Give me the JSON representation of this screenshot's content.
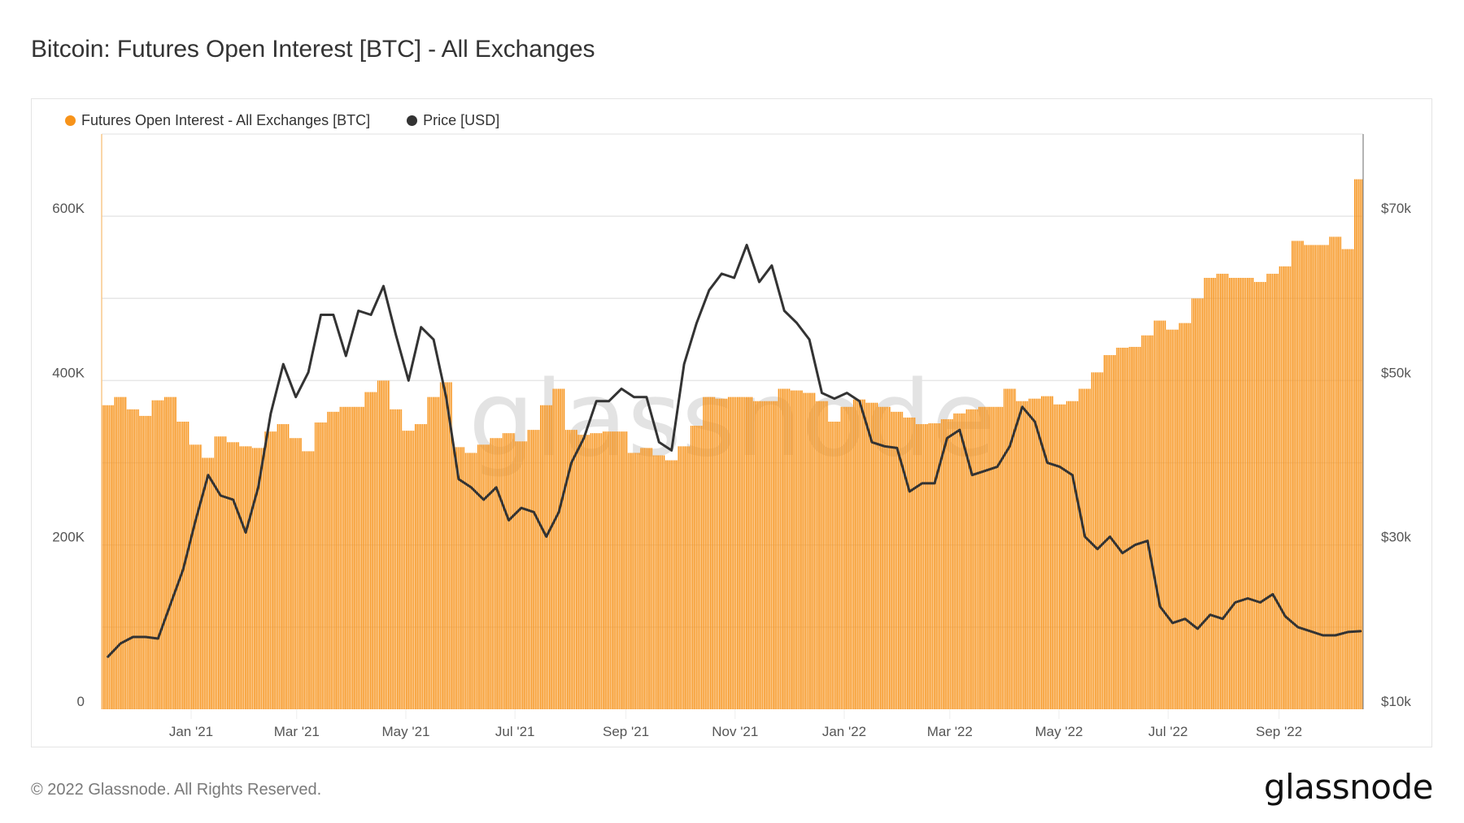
{
  "title": "Bitcoin: Futures Open Interest [BTC] - All Exchanges",
  "footer": {
    "copyright": "© 2022 Glassnode. All Rights Reserved.",
    "logo_text": "glassnode"
  },
  "watermark": "glassnode",
  "legend": [
    {
      "label": "Futures Open Interest - All Exchanges [BTC]",
      "color": "#F7931A",
      "icon": "circle-dot-icon"
    },
    {
      "label": "Price [USD]",
      "color": "#333333",
      "icon": "circle-dot-icon"
    }
  ],
  "chart_data": {
    "type": "bar+line",
    "title": "Bitcoin: Futures Open Interest [BTC] - All Exchanges",
    "x_start": "2020-11-12",
    "x_step_days": 7,
    "x_range": [
      "2020-11-12",
      "2022-10-18"
    ],
    "x_ticks": [
      {
        "date": "2021-01-01",
        "label": "Jan '21"
      },
      {
        "date": "2021-03-01",
        "label": "Mar '21"
      },
      {
        "date": "2021-05-01",
        "label": "May '21"
      },
      {
        "date": "2021-07-01",
        "label": "Jul '21"
      },
      {
        "date": "2021-09-01",
        "label": "Sep '21"
      },
      {
        "date": "2021-11-01",
        "label": "Nov '21"
      },
      {
        "date": "2022-01-01",
        "label": "Jan '22"
      },
      {
        "date": "2022-03-01",
        "label": "Mar '22"
      },
      {
        "date": "2022-05-01",
        "label": "May '22"
      },
      {
        "date": "2022-07-01",
        "label": "Jul '22"
      },
      {
        "date": "2022-09-01",
        "label": "Sep '22"
      }
    ],
    "y_left": {
      "label": "Futures Open Interest [BTC]",
      "range": [
        0,
        700000
      ],
      "ticks": [
        {
          "value": 0,
          "label": "0"
        },
        {
          "value": 200000,
          "label": "200K"
        },
        {
          "value": 400000,
          "label": "400K"
        },
        {
          "value": 600000,
          "label": "600K"
        }
      ],
      "gridlines": [
        100000,
        200000,
        300000,
        400000,
        500000,
        600000
      ]
    },
    "y_right": {
      "label": "Price [USD]",
      "range": [
        10000,
        80000
      ],
      "ticks": [
        {
          "value": 10000,
          "label": "$10k"
        },
        {
          "value": 30000,
          "label": "$30k"
        },
        {
          "value": 50000,
          "label": "$50k"
        },
        {
          "value": 70000,
          "label": "$70k"
        }
      ]
    },
    "grid": true,
    "legend_position": "top-left",
    "series": [
      {
        "name": "Futures Open Interest - All Exchanges [BTC]",
        "type": "bar",
        "axis": "left",
        "color": "#F7931A",
        "values": [
          370000,
          380000,
          365000,
          357000,
          376000,
          380000,
          350000,
          322000,
          306000,
          332000,
          325000,
          320000,
          318000,
          338000,
          347000,
          330000,
          314000,
          349000,
          362000,
          368000,
          368000,
          386000,
          400000,
          365000,
          339000,
          347000,
          380000,
          398000,
          319000,
          312000,
          322000,
          330000,
          336000,
          326000,
          340000,
          370000,
          390000,
          340000,
          334000,
          336000,
          338000,
          338000,
          312000,
          318000,
          309000,
          303000,
          320000,
          345000,
          380000,
          378000,
          380000,
          380000,
          375000,
          375000,
          390000,
          388000,
          385000,
          375000,
          350000,
          368000,
          377000,
          373000,
          368000,
          362000,
          355000,
          347000,
          348000,
          353000,
          360000,
          365000,
          368000,
          368000,
          390000,
          375000,
          378000,
          381000,
          371000,
          375000,
          390000,
          410000,
          431000,
          440000,
          441000,
          455000,
          473000,
          462000,
          470000,
          500000,
          525000,
          530000,
          525000,
          525000,
          520000,
          530000,
          539000,
          570000,
          565000,
          565000,
          575000,
          560000,
          645000
        ]
      },
      {
        "name": "Price [USD]",
        "type": "line",
        "axis": "right",
        "color": "#333333",
        "values": [
          16400,
          18000,
          18800,
          18800,
          18600,
          22800,
          27000,
          33000,
          38500,
          36000,
          35500,
          31500,
          37000,
          46000,
          52000,
          48000,
          51000,
          58000,
          58000,
          53000,
          58500,
          58000,
          61500,
          55500,
          50000,
          56500,
          55000,
          48000,
          38000,
          37000,
          35500,
          37000,
          33000,
          34500,
          34000,
          31000,
          34000,
          40000,
          43000,
          47500,
          47500,
          49000,
          48000,
          48000,
          42500,
          41500,
          52000,
          57000,
          61000,
          63000,
          62500,
          66500,
          62000,
          64000,
          58500,
          57000,
          55000,
          48500,
          47800,
          48500,
          47500,
          42500,
          42000,
          41800,
          36500,
          37500,
          37500,
          43000,
          44000,
          38500,
          39000,
          39500,
          42000,
          46800,
          45000,
          40000,
          39500,
          38500,
          31000,
          29500,
          31000,
          29000,
          30000,
          30500,
          22500,
          20500,
          21000,
          19800,
          21500,
          21000,
          23000,
          23500,
          23000,
          24000,
          21300,
          20000,
          19500,
          19000,
          19000,
          19400,
          19500
        ]
      }
    ]
  }
}
